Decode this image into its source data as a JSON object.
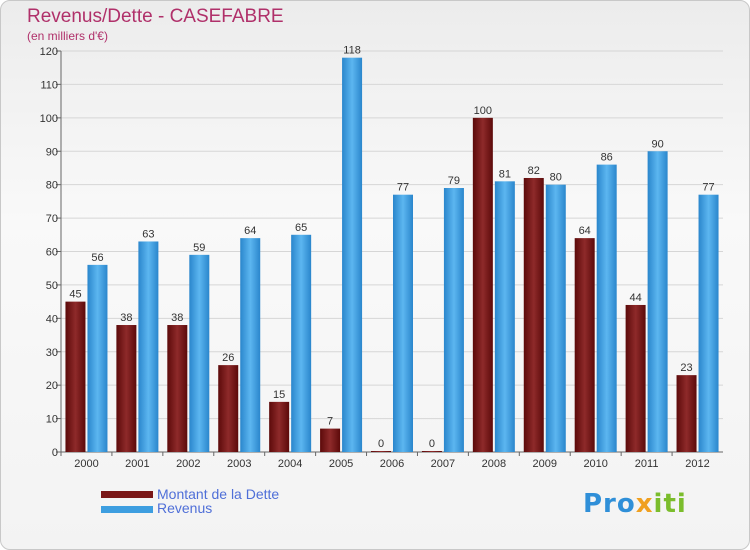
{
  "chart_data": {
    "type": "bar",
    "title": "Revenus/Dette - CASEFABRE",
    "subtitle": "(en milliers d'€)",
    "categories": [
      "2000",
      "2001",
      "2002",
      "2003",
      "2004",
      "2005",
      "2006",
      "2007",
      "2008",
      "2009",
      "2010",
      "2011",
      "2012"
    ],
    "series": [
      {
        "name": "Montant de la Dette",
        "color": "#7a1616",
        "values": [
          45,
          38,
          38,
          26,
          15,
          7,
          0,
          0,
          100,
          82,
          64,
          44,
          23
        ]
      },
      {
        "name": "Revenus",
        "color": "#3d9ee0",
        "values": [
          56,
          63,
          59,
          64,
          65,
          118,
          77,
          79,
          81,
          80,
          86,
          90,
          77
        ]
      }
    ],
    "ylim": [
      0,
      120
    ],
    "yticks": [
      0,
      10,
      20,
      30,
      40,
      50,
      60,
      70,
      80,
      90,
      100,
      110,
      120
    ],
    "grid": true,
    "legend_position": "bottom-left"
  },
  "brand": {
    "part1": "Pro",
    "part2": "x",
    "part3": "iti"
  }
}
